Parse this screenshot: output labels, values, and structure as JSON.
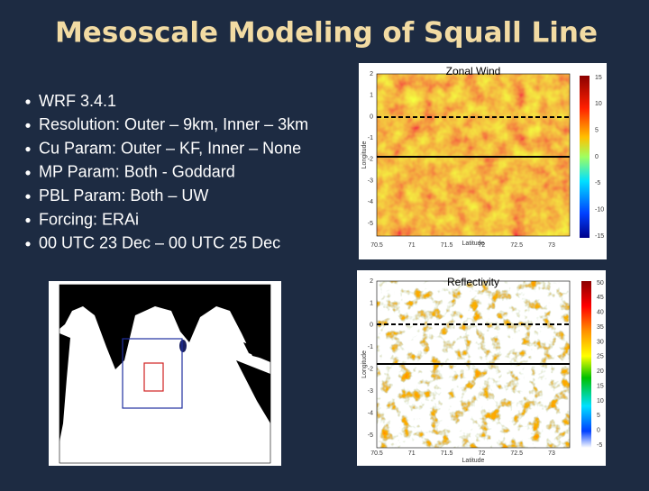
{
  "header": {
    "title": "Mesoscale Modeling of Squall Line"
  },
  "bullets": [
    "WRF 3.4.1",
    "Resolution: Outer – 9km, Inner – 3km",
    "Cu Param: Outer – KF, Inner – None",
    "MP Param: Both -  Goddard",
    "PBL Param: Both – UW",
    "Forcing: ERAi",
    "00 UTC 23 Dec – 00 UTC 25 Dec"
  ],
  "panels": [
    {
      "title": "Zonal Wind",
      "y_label": "Longitude",
      "x_label": "Latitude",
      "y_ticks": [
        2,
        1,
        0,
        -1,
        -2,
        -3,
        -4,
        -5
      ],
      "x_ticks": [
        70.5,
        71,
        71.5,
        72,
        72.5,
        73
      ],
      "colorbar_ticks": [
        15,
        10,
        5,
        0,
        -5,
        -10,
        -15
      ]
    },
    {
      "title": "Reflectivity",
      "y_label": "Longitude",
      "x_label": "Latitude",
      "y_ticks": [
        2,
        1,
        0,
        -1,
        -2,
        -3,
        -4,
        -5
      ],
      "x_ticks": [
        70.5,
        71,
        71.5,
        72,
        72.5,
        73
      ],
      "colorbar_ticks": [
        50,
        45,
        40,
        35,
        30,
        25,
        20,
        15,
        10,
        5,
        0,
        -5
      ]
    }
  ]
}
